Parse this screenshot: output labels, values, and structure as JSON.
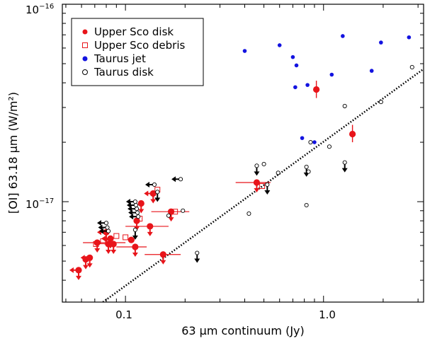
{
  "chart_data": {
    "type": "scatter",
    "title": "",
    "xlabel": "63 μm continuum (Jy)",
    "ylabel": "[OI] 63.18 μm (W/m²)",
    "xscale": "log",
    "yscale": "log",
    "xlim": [
      0.048,
      3.2
    ],
    "ylim": [
      3.1e-18,
      1e-16
    ],
    "x_tick_labels": [
      {
        "value": 0.1,
        "label": "0.1"
      },
      {
        "value": 1.0,
        "label": "1.0"
      }
    ],
    "y_tick_labels": [
      {
        "value": 1e-17,
        "base": "10",
        "exp": "−17"
      },
      {
        "value": 1e-16,
        "base": "10",
        "exp": "−16"
      }
    ],
    "legend": {
      "position": "top-left",
      "entries": [
        {
          "label": "Upper Sco disk",
          "marker": "filled-circle",
          "color": "#e8141a"
        },
        {
          "label": "Upper Sco debris",
          "marker": "open-square",
          "color": "#e8141a"
        },
        {
          "label": "Taurus jet",
          "marker": "filled-circle",
          "color": "#1313e0"
        },
        {
          "label": "Taurus disk",
          "marker": "open-circle",
          "color": "#000000"
        }
      ]
    },
    "fit_line": {
      "style": "dotted",
      "points": [
        [
          0.077,
          3.1e-18
        ],
        [
          3.2,
          4.7e-17
        ]
      ]
    },
    "series": [
      {
        "name": "Upper Sco disk",
        "color": "#e8141a",
        "points": [
          {
            "x": 0.058,
            "y": 4.5e-18,
            "xlim": true,
            "ylim": true
          },
          {
            "x": 0.063,
            "y": 5.1e-18,
            "ylim": true
          },
          {
            "x": 0.066,
            "y": 5.2e-18,
            "xlim": true,
            "ylim": true
          },
          {
            "x": 0.072,
            "y": 6.2e-18,
            "ylim": true,
            "xerr": [
              0.061,
              0.1
            ]
          },
          {
            "x": 0.082,
            "y": 6.1e-18,
            "ylim": true
          },
          {
            "x": 0.084,
            "y": 6.5e-18,
            "xlim": true,
            "ylim": true
          },
          {
            "x": 0.087,
            "y": 6.1e-18,
            "xlim": true,
            "ylim": true
          },
          {
            "x": 0.08,
            "y": 7e-18,
            "xlim": true,
            "ylim": true
          },
          {
            "x": 0.107,
            "y": 6.4e-18
          },
          {
            "x": 0.112,
            "y": 5.9e-18,
            "ylim": true,
            "xerr": [
              0.09,
              0.128
            ]
          },
          {
            "x": 0.114,
            "y": 8e-18,
            "ylim": true
          },
          {
            "x": 0.12,
            "y": 9.8e-18,
            "ylim": true
          },
          {
            "x": 0.133,
            "y": 7.5e-18,
            "ylim": true,
            "xerr": [
              0.1,
              0.165
            ]
          },
          {
            "x": 0.138,
            "y": 1.1e-17,
            "xlim": true,
            "ylim": true
          },
          {
            "x": 0.17,
            "y": 8.9e-18,
            "ylim": true,
            "xerr": [
              0.135,
              0.21
            ]
          },
          {
            "x": 0.155,
            "y": 5.4e-18,
            "ylim": true,
            "xerr": [
              0.125,
              0.19
            ]
          },
          {
            "x": 0.46,
            "y": 1.25e-17,
            "ylim": true,
            "xerr": [
              0.36,
              0.54
            ]
          },
          {
            "x": 0.92,
            "y": 3.7e-17,
            "yerr": [
              3.35e-17,
              4.1e-17
            ]
          },
          {
            "x": 1.4,
            "y": 2.2e-17,
            "yerr": [
              2e-17,
              2.45e-17
            ]
          }
        ]
      },
      {
        "name": "Upper Sco debris",
        "color": "#e8141a",
        "points": [
          {
            "x": 0.071,
            "y": 6.1e-18
          },
          {
            "x": 0.077,
            "y": 6.3e-18
          },
          {
            "x": 0.09,
            "y": 6.7e-18
          },
          {
            "x": 0.1,
            "y": 6.6e-18
          },
          {
            "x": 0.118,
            "y": 8.2e-18
          },
          {
            "x": 0.145,
            "y": 1.15e-17
          },
          {
            "x": 0.178,
            "y": 8.9e-18
          },
          {
            "x": 0.49,
            "y": 1.2e-17
          }
        ]
      },
      {
        "name": "Taurus jet",
        "color": "#1313e0",
        "points": [
          {
            "x": 0.4,
            "y": 5.8e-17
          },
          {
            "x": 0.6,
            "y": 6.2e-17
          },
          {
            "x": 0.7,
            "y": 5.4e-17
          },
          {
            "x": 0.73,
            "y": 4.9e-17
          },
          {
            "x": 0.72,
            "y": 3.8e-17
          },
          {
            "x": 0.83,
            "y": 3.9e-17
          },
          {
            "x": 1.1,
            "y": 4.4e-17
          },
          {
            "x": 1.25,
            "y": 6.9e-17
          },
          {
            "x": 1.75,
            "y": 4.6e-17
          },
          {
            "x": 1.95,
            "y": 6.4e-17
          },
          {
            "x": 2.7,
            "y": 6.8e-17
          },
          {
            "x": 0.78,
            "y": 2.1e-17
          },
          {
            "x": 0.9,
            "y": 2e-17
          }
        ]
      },
      {
        "name": "Taurus disk",
        "color": "#000000",
        "points": [
          {
            "x": 0.08,
            "y": 7.8e-18,
            "xlim": true
          },
          {
            "x": 0.081,
            "y": 7.4e-18,
            "xlim": true
          },
          {
            "x": 0.082,
            "y": 7.1e-18,
            "xlim": true
          },
          {
            "x": 0.112,
            "y": 1e-17,
            "xlim": true
          },
          {
            "x": 0.113,
            "y": 9.6e-18,
            "xlim": true
          },
          {
            "x": 0.114,
            "y": 9.2e-18,
            "xlim": true
          },
          {
            "x": 0.115,
            "y": 8.8e-18,
            "xlim": true
          },
          {
            "x": 0.116,
            "y": 8.4e-18,
            "xlim": true
          },
          {
            "x": 0.112,
            "y": 7.2e-18,
            "ylim": true
          },
          {
            "x": 0.14,
            "y": 1.22e-17,
            "xlim": true
          },
          {
            "x": 0.145,
            "y": 1.12e-17,
            "ylim": true
          },
          {
            "x": 0.19,
            "y": 1.3e-17,
            "xlim": true
          },
          {
            "x": 0.23,
            "y": 5.5e-18,
            "ylim": true
          },
          {
            "x": 0.195,
            "y": 9e-18
          },
          {
            "x": 0.165,
            "y": 8.5e-18
          },
          {
            "x": 0.42,
            "y": 8.7e-18
          },
          {
            "x": 0.46,
            "y": 1.52e-17,
            "ylim": true
          },
          {
            "x": 0.5,
            "y": 1.55e-17
          },
          {
            "x": 0.52,
            "y": 1.22e-17,
            "ylim": true
          },
          {
            "x": 0.59,
            "y": 1.4e-17
          },
          {
            "x": 0.82,
            "y": 1.5e-17,
            "ylim": true
          },
          {
            "x": 0.84,
            "y": 1.42e-17
          },
          {
            "x": 0.82,
            "y": 9.6e-18
          },
          {
            "x": 0.86,
            "y": 2e-17
          },
          {
            "x": 1.07,
            "y": 1.9e-17
          },
          {
            "x": 1.28,
            "y": 3.05e-17
          },
          {
            "x": 1.28,
            "y": 1.58e-17,
            "ylim": true
          },
          {
            "x": 1.95,
            "y": 3.2e-17
          },
          {
            "x": 2.8,
            "y": 4.8e-17
          }
        ]
      }
    ]
  }
}
